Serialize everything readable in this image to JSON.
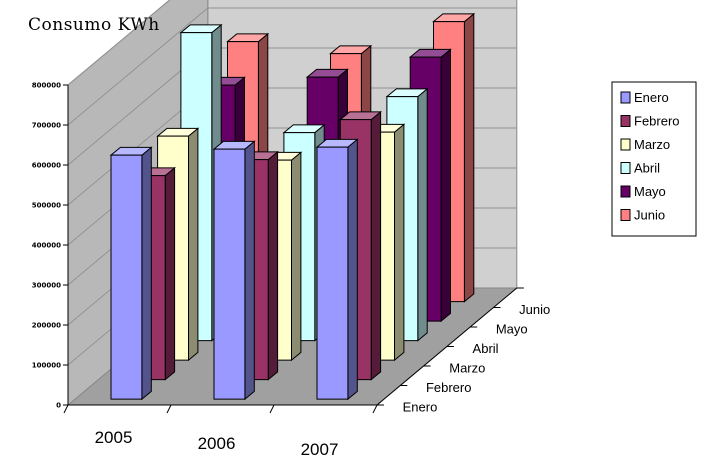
{
  "chart_data": {
    "type": "bar",
    "title": "Consumo KWh",
    "categories": [
      "2005",
      "2006",
      "2007"
    ],
    "y_ticks": [
      "0",
      "100000",
      "200000",
      "300000",
      "400000",
      "500000",
      "600000",
      "700000",
      "800000"
    ],
    "ylim": [
      0,
      800000
    ],
    "grid": true,
    "legend_position": "right",
    "series": [
      {
        "name": "Enero",
        "color": "#9999ff",
        "values": [
          610000,
          625000,
          630000
        ]
      },
      {
        "name": "Febrero",
        "color": "#993366",
        "values": [
          510000,
          550000,
          650000
        ]
      },
      {
        "name": "Marzo",
        "color": "#ffffcc",
        "values": [
          560000,
          500000,
          570000
        ]
      },
      {
        "name": "Abril",
        "color": "#ccffff",
        "values": [
          770000,
          520000,
          610000
        ]
      },
      {
        "name": "Mayo",
        "color": "#660066",
        "values": [
          590000,
          610000,
          660000
        ]
      },
      {
        "name": "Junio",
        "color": "#ff8080",
        "values": [
          650000,
          620000,
          700000
        ]
      }
    ]
  }
}
